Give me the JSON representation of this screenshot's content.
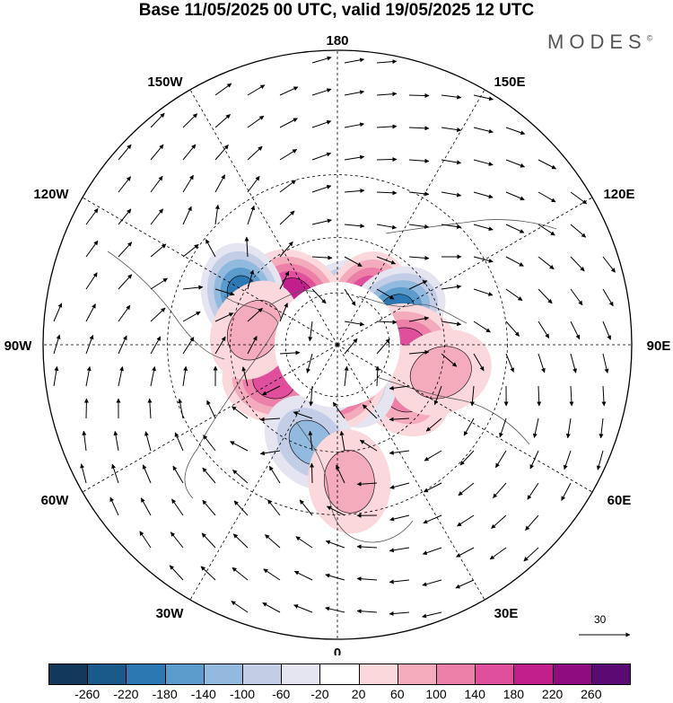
{
  "title": "Base 11/05/2025 00 UTC, valid 19/05/2025 12 UTC",
  "brand": "MODES",
  "brand_mark": "©",
  "longitude_labels": {
    "top": "180",
    "bottom": "0",
    "left": "90W",
    "right": "90E",
    "upper_left_1": "150W",
    "upper_left_2": "120W",
    "upper_right_1": "150E",
    "upper_right_2": "120E",
    "lower_left_1": "60W",
    "lower_left_2": "30W",
    "lower_right_1": "60E",
    "lower_right_2": "30E"
  },
  "reference_vector_label": "30",
  "colorbar": {
    "colors": [
      "#12395b",
      "#1a5a8a",
      "#2b78b3",
      "#5b9ccd",
      "#92bade",
      "#c3cde6",
      "#e5e5f1",
      "#ffffff",
      "#fbd8dc",
      "#f4abbb",
      "#ec80a8",
      "#e04f9c",
      "#c21f8d",
      "#8e0b80",
      "#5a0a73"
    ],
    "labels": [
      "-260",
      "-220",
      "-180",
      "-140",
      "-100",
      "-60",
      "-20",
      "20",
      "60",
      "100",
      "140",
      "180",
      "220",
      "260"
    ]
  },
  "anomaly_centres": [
    {
      "lon": 160,
      "colat": 18,
      "value": -180
    },
    {
      "lon": -140,
      "colat": 25,
      "value": 180
    },
    {
      "lon": -118,
      "colat": 40,
      "value": -180
    },
    {
      "lon": 145,
      "colat": 20,
      "value": 180
    },
    {
      "lon": 120,
      "colat": 26,
      "value": -180
    },
    {
      "lon": 90,
      "colat": 26,
      "value": 140
    },
    {
      "lon": 55,
      "colat": 30,
      "value": 100
    },
    {
      "lon": 30,
      "colat": 14,
      "value": -100
    },
    {
      "lon": 10,
      "colat": 14,
      "value": 180
    },
    {
      "lon": -25,
      "colat": 12,
      "value": -140
    },
    {
      "lon": -60,
      "colat": 28,
      "value": 140
    },
    {
      "lon": -15,
      "colat": 38,
      "value": -100
    },
    {
      "lon": 5,
      "colat": 50,
      "value": 60
    },
    {
      "lon": -100,
      "colat": 32,
      "value": 60
    },
    {
      "lon": 75,
      "colat": 40,
      "value": 60
    }
  ]
}
